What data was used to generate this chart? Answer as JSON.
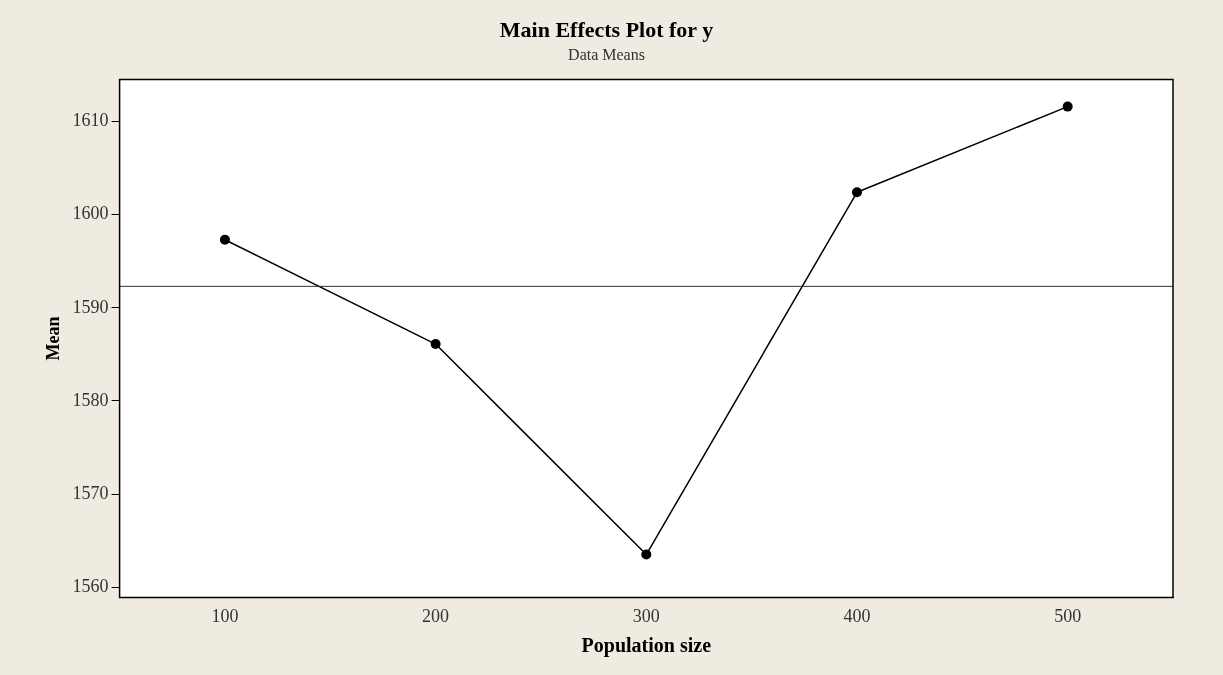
{
  "chart_data": {
    "type": "line",
    "title": "Main Effects Plot for y",
    "subtitle": "Data Means",
    "xlabel": "Population size",
    "ylabel": "Mean",
    "x": [
      100,
      200,
      300,
      400,
      500
    ],
    "series": [
      {
        "color": "#000000",
        "values": [
          1597.3,
          1586.1,
          1563.5,
          1602.4,
          1611.6
        ]
      }
    ],
    "xlim": [
      50,
      550
    ],
    "xticks": [
      100,
      200,
      300,
      400,
      500
    ],
    "ylim": [
      1558.9,
      1614.5
    ],
    "yticks": [
      1560,
      1570,
      1580,
      1590,
      1600,
      1610
    ],
    "ref_lines": [
      {
        "axis": "y",
        "value": 1592.3,
        "color": "#333333"
      }
    ],
    "marker": "circle",
    "line_style": "solid",
    "grid": false,
    "legend": false
  }
}
